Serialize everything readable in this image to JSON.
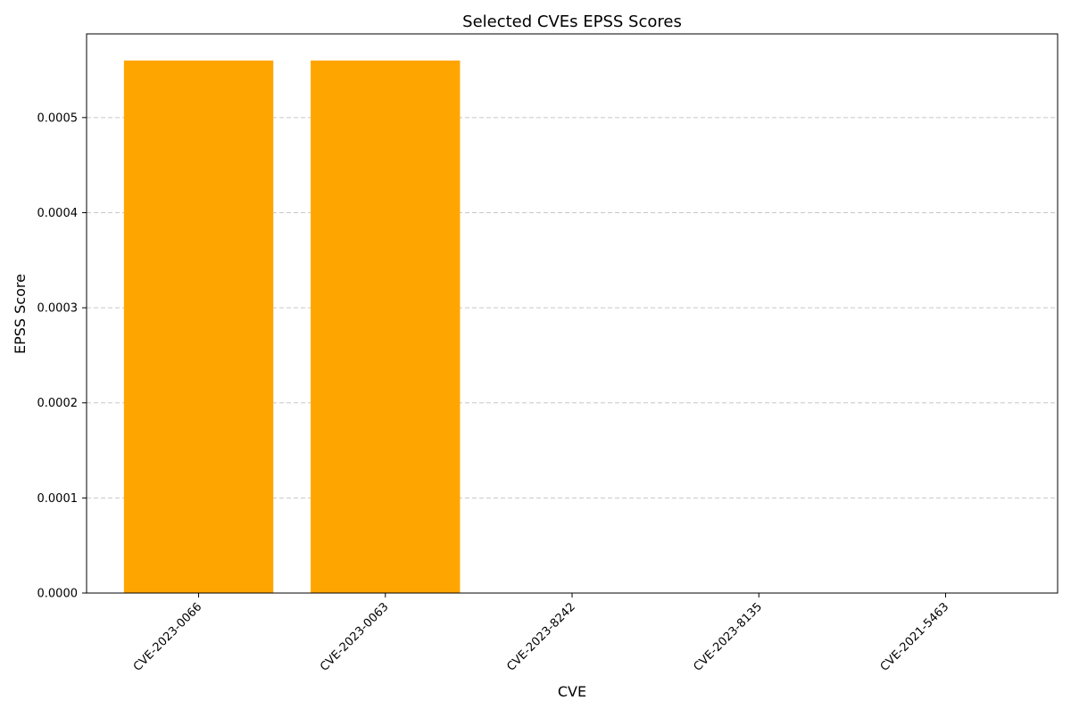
{
  "chart_data": {
    "type": "bar",
    "title": "Selected CVEs EPSS Scores",
    "xlabel": "CVE",
    "ylabel": "EPSS Score",
    "categories": [
      "CVE-2023-0066",
      "CVE-2023-0063",
      "CVE-2023-8242",
      "CVE-2023-8135",
      "CVE-2021-5463"
    ],
    "values": [
      0.00056,
      0.00056,
      0,
      0,
      0
    ],
    "ylim": [
      0,
      0.000588
    ],
    "yticks": [
      "0.0000",
      "0.0001",
      "0.0002",
      "0.0003",
      "0.0004",
      "0.0005"
    ],
    "ytick_values": [
      0,
      0.0001,
      0.0002,
      0.0003,
      0.0004,
      0.0005
    ],
    "grid": "y-dashed",
    "bar_color": "#FFA500",
    "grid_color": "#c8c8c8",
    "axis_color": "#000000"
  }
}
